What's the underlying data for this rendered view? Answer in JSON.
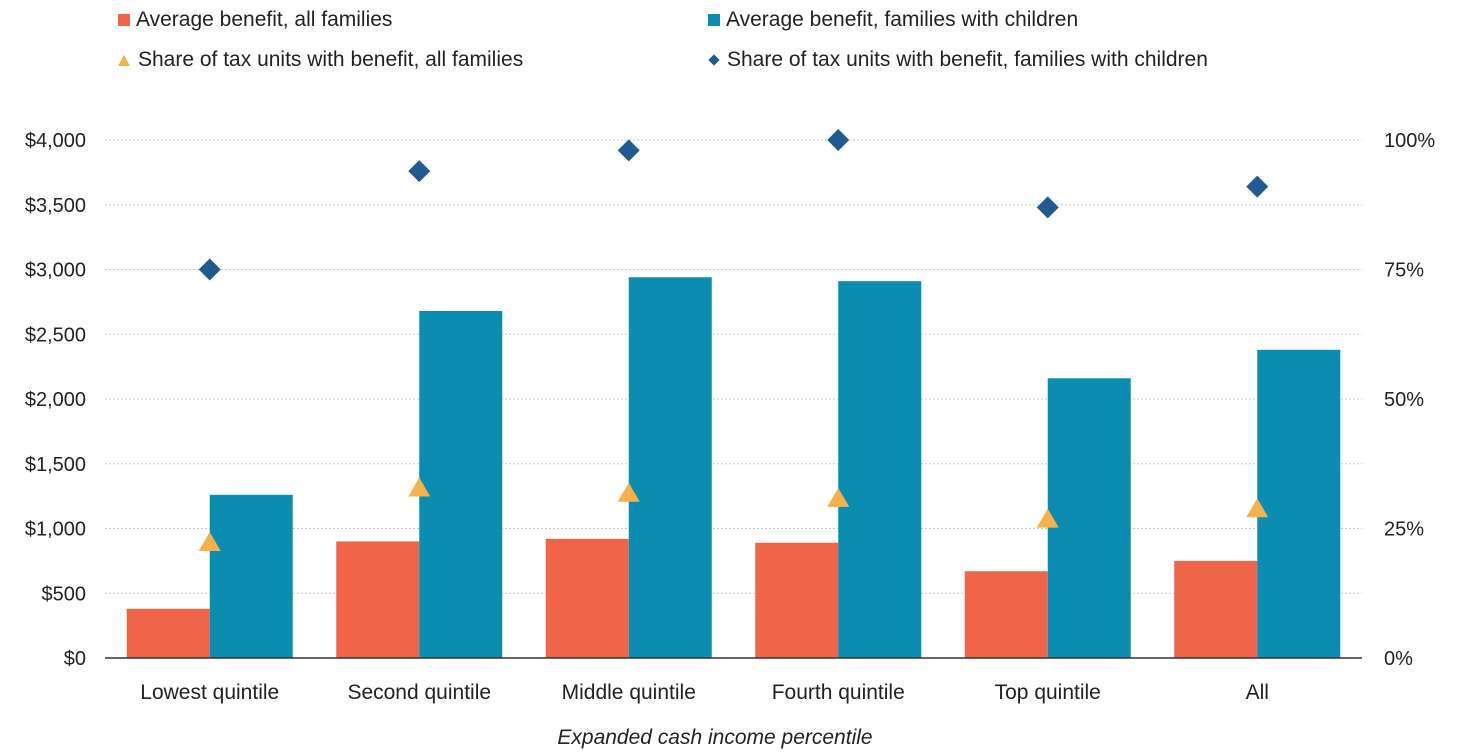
{
  "legend": {
    "items": [
      {
        "label": "Average benefit, all families",
        "symbol": "square",
        "color": "#f0644a"
      },
      {
        "label": "Average benefit, families with children",
        "symbol": "square",
        "color": "#0a8db0"
      },
      {
        "label": "Share of tax units with benefit, all families",
        "symbol": "triangle",
        "color": "#f6b14a"
      },
      {
        "label": "Share of tax units with benefit, families with children",
        "symbol": "diamond",
        "color": "#1f5a91"
      }
    ]
  },
  "chart_data": {
    "type": "bar",
    "categories": [
      "Lowest quintile",
      "Second quintile",
      "Middle quintile",
      "Fourth quintile",
      "Top quintile",
      "All"
    ],
    "series": [
      {
        "name": "Average benefit, all families",
        "kind": "bar",
        "axis": "left",
        "color": "#f0644a",
        "values": [
          380,
          900,
          920,
          890,
          670,
          750
        ]
      },
      {
        "name": "Average benefit, families with children",
        "kind": "bar",
        "axis": "left",
        "color": "#0a8db0",
        "values": [
          1260,
          2680,
          2940,
          2910,
          2160,
          2380
        ]
      },
      {
        "name": "Share of tax units with benefit, all families",
        "kind": "marker-triangle",
        "axis": "right",
        "color": "#f6b14a",
        "values": [
          22.5,
          33,
          32,
          31,
          27,
          29
        ]
      },
      {
        "name": "Share of tax units with benefit, families with children",
        "kind": "marker-diamond",
        "axis": "right",
        "color": "#1f5a91",
        "values": [
          75,
          94,
          98,
          100,
          87,
          91
        ]
      }
    ],
    "y_left": {
      "min": 0,
      "max": 4000,
      "ticks": [
        0,
        500,
        1000,
        1500,
        2000,
        2500,
        3000,
        3500,
        4000
      ],
      "tick_labels": [
        "$0",
        "$500",
        "$1,000",
        "$1,500",
        "$2,000",
        "$2,500",
        "$3,000",
        "$3,500",
        "$4,000"
      ]
    },
    "y_right": {
      "min": 0,
      "max": 100,
      "ticks": [
        0,
        25,
        50,
        75,
        100
      ],
      "tick_labels": [
        "0%",
        "25%",
        "50%",
        "75%",
        "100%"
      ]
    },
    "xlabel": "Expanded cash income percentile",
    "grid": true,
    "legend_position": "top"
  }
}
